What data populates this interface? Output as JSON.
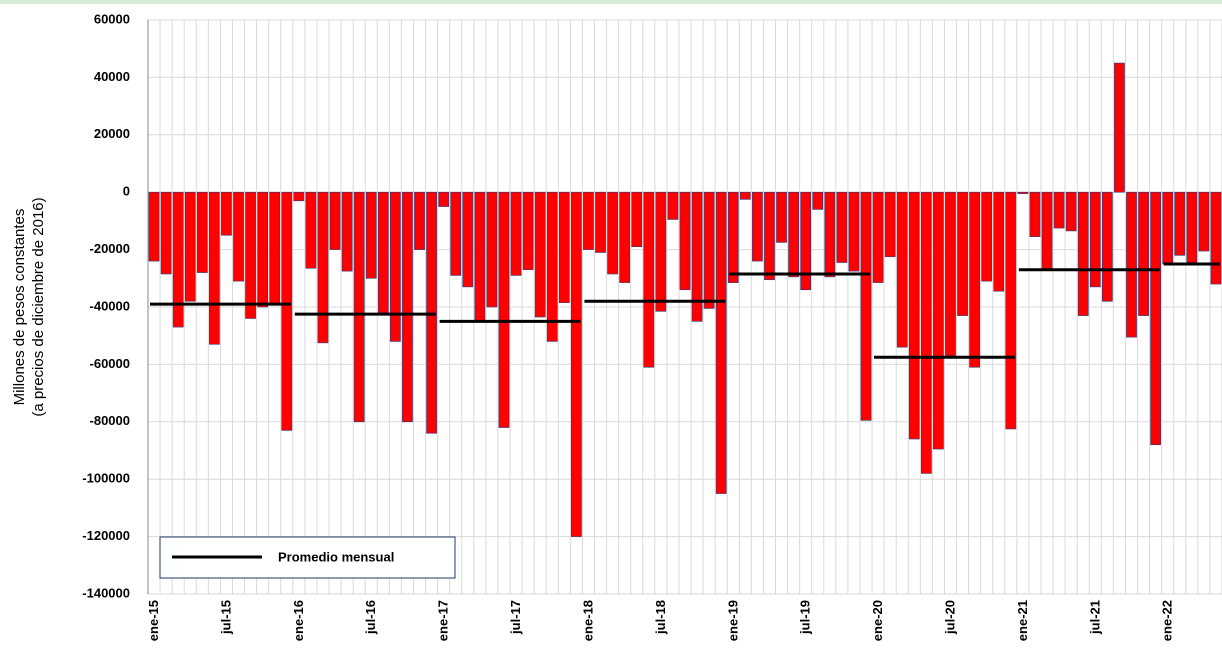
{
  "chart_data": {
    "type": "bar",
    "ylabel": [
      "Millones de pesos constantes",
      "(a precios de diciembre de 2016)"
    ],
    "categories": [
      "ene-15",
      null,
      null,
      null,
      null,
      null,
      "jul-15",
      null,
      null,
      null,
      null,
      null,
      "ene-16",
      null,
      null,
      null,
      null,
      null,
      "jul-16",
      null,
      null,
      null,
      null,
      null,
      "ene-17",
      null,
      null,
      null,
      null,
      null,
      "jul-17",
      null,
      null,
      null,
      null,
      null,
      "ene-18",
      null,
      null,
      null,
      null,
      null,
      "jul-18",
      null,
      null,
      null,
      null,
      null,
      "ene-19",
      null,
      null,
      null,
      null,
      null,
      "jul-19",
      null,
      null,
      null,
      null,
      null,
      "ene-20",
      null,
      null,
      null,
      null,
      null,
      "jul-20",
      null,
      null,
      null,
      null,
      null,
      "ene-21",
      null,
      null,
      null,
      null,
      null,
      "jul-21",
      null,
      null,
      null,
      null,
      null,
      "ene-22",
      null,
      null,
      null,
      null
    ],
    "values": [
      -24000,
      -28500,
      -47000,
      -38000,
      -28000,
      -53000,
      -15000,
      -31000,
      -44000,
      -40000,
      -39000,
      -83000,
      -3000,
      -26500,
      -52500,
      -20000,
      -27500,
      -80000,
      -30000,
      -42000,
      -52000,
      -80000,
      -20000,
      -84000,
      -5000,
      -29000,
      -33000,
      -45000,
      -40000,
      -82000,
      -29000,
      -27000,
      -43500,
      -52000,
      -38500,
      -120000,
      -20000,
      -21000,
      -28500,
      -31500,
      -19000,
      -61000,
      -41500,
      -9500,
      -34000,
      -45000,
      -40500,
      -105000,
      -31500,
      -2500,
      -24000,
      -30500,
      -17500,
      -29500,
      -34000,
      -6000,
      -29500,
      -24500,
      -27500,
      -79500,
      -31500,
      -22500,
      -54000,
      -86000,
      -98000,
      -89500,
      -57000,
      -43000,
      -61000,
      -31000,
      -34500,
      -82500,
      -500,
      -15500,
      -27000,
      -12500,
      -13500,
      -43000,
      -33000,
      -38000,
      45000,
      -50500,
      -43000,
      -88000,
      -25000,
      -22000,
      -24500,
      -20500,
      -32000
    ],
    "color": "#ff0000",
    "average": {
      "name": "Promedio mensual",
      "color": "#000000",
      "values": [
        -39000,
        -42500,
        -45000,
        -38000,
        -28500,
        -57500,
        -27000,
        -25000
      ]
    },
    "ylim": [
      -140000,
      60000
    ],
    "yticks": [
      -140000,
      -120000,
      -100000,
      -80000,
      -60000,
      -40000,
      -20000,
      0,
      20000,
      40000,
      60000
    ],
    "grid": true
  }
}
